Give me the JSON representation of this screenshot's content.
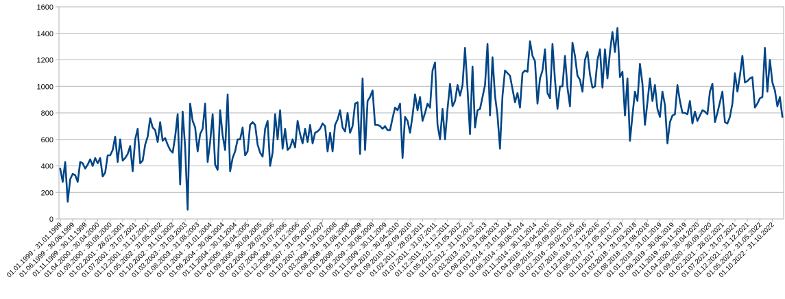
{
  "chart_data": {
    "type": "line",
    "title": "",
    "xlabel": "",
    "ylabel": "",
    "ylim": [
      0,
      1600
    ],
    "yticks": [
      0,
      200,
      400,
      600,
      800,
      1000,
      1200,
      1400,
      1600
    ],
    "grid": true,
    "legend": "none",
    "line_color": "#004586",
    "x_tick_labels": [
      "01.01.1999 - 31.01.1999",
      "01.06.1999 - 30.06.1999",
      "01.11.1999 - 30.11.1999",
      "01.04.2000 - 30.04.2000",
      "01.09.2000 - 30.09.2000",
      "01.02.2001 - 28.02.2001",
      "01.07.2001 - 31.07.2001",
      "01.12.2001 - 31.12.2001",
      "01.05.2002 - 31.05.2002",
      "01.10.2002 - 31.10.2002",
      "01.03.2003 - 31.03.2003",
      "01.08.2003 - 31.08.2003",
      "01.01.2004 - 31.01.2004",
      "01.06.2004 - 30.06.2004",
      "01.11.2004 - 30.11.2004",
      "01.04.2005 - 30.04.2005",
      "01.09.2005 - 30.09.2005",
      "01.02.2006 - 28.02.2006",
      "01.07.2006 - 31.07.2006",
      "01.12.2006 - 31.12.2006",
      "01.05.2007 - 31.05.2007",
      "01.10.2007 - 31.10.2007",
      "01.03.2008 - 31.03.2008",
      "01.08.2008 - 31.08.2008",
      "01.01.2009 - 31.01.2009",
      "01.06.2009 - 30.06.2009",
      "01.11.2009 - 30.11.2009",
      "01.04.2010 - 30.04.2010",
      "01.09.2010 - 30.09.2010",
      "01.02.2011 - 28.02.2011",
      "01.07.2011 - 31.07.2011",
      "01.12.2011 - 31.12.2011",
      "01.05.2012 - 31.05.2012",
      "01.10.2012 - 31.10.2012",
      "01.03.2013 - 31.03.2013",
      "01.08.2013 - 31.08.2013",
      "01.01.2014 - 31.01.2014",
      "01.06.2014 - 30.06.2014",
      "01.11.2014 - 30.11.2014",
      "01.04.2015 - 30.04.2015",
      "01.09.2015 - 30.09.2015",
      "01.02.2016 - 29.02.2016",
      "01.07.2016 - 31.07.2016",
      "01.12.2016 - 31.12.2016",
      "01.05.2017 - 31.05.2017",
      "01.10.2017 - 31.10.2017",
      "01.03.2018 - 31.03.2018",
      "01.08.2018 - 31.08.2018",
      "01.01.2019 - 31.01.2019",
      "01.06.2019 - 30.06.2019",
      "01.11.2019 - 30.11.2019",
      "01.04.2020 - 30.04.2020",
      "01.09.2020 - 30.09.2020",
      "01.02.2021 - 28.02.2021",
      "01.07.2021 - 31.07.2021",
      "01.12.2021 - 31.12.2021",
      "01.05.2022 - 31.05.2022",
      "01.10.2022 - 31.10.2022"
    ],
    "x_tick_every_n_points": 5,
    "values": [
      380,
      280,
      430,
      130,
      300,
      340,
      330,
      280,
      430,
      420,
      380,
      410,
      450,
      400,
      460,
      420,
      460,
      320,
      350,
      480,
      480,
      520,
      620,
      430,
      600,
      440,
      460,
      490,
      550,
      360,
      600,
      680,
      420,
      440,
      560,
      620,
      760,
      690,
      670,
      580,
      730,
      590,
      610,
      560,
      520,
      500,
      620,
      790,
      260,
      810,
      540,
      70,
      870,
      740,
      690,
      510,
      640,
      680,
      870,
      430,
      580,
      790,
      410,
      370,
      820,
      630,
      520,
      940,
      360,
      460,
      510,
      600,
      600,
      690,
      480,
      510,
      710,
      730,
      710,
      560,
      500,
      470,
      680,
      740,
      400,
      500,
      790,
      600,
      820,
      530,
      680,
      520,
      540,
      600,
      540,
      740,
      640,
      570,
      680,
      580,
      710,
      570,
      650,
      660,
      680,
      720,
      700,
      510,
      650,
      510,
      710,
      750,
      820,
      690,
      660,
      800,
      650,
      700,
      870,
      880,
      490,
      1060,
      520,
      890,
      920,
      970,
      710,
      710,
      700,
      680,
      700,
      670,
      670,
      760,
      840,
      820,
      870,
      460,
      770,
      740,
      650,
      780,
      940,
      820,
      920,
      740,
      800,
      870,
      840,
      1120,
      1180,
      710,
      600,
      830,
      600,
      830,
      1020,
      850,
      890,
      1010,
      930,
      1010,
      1290,
      980,
      640,
      1150,
      690,
      820,
      830,
      920,
      1010,
      1320,
      780,
      1220,
      930,
      780,
      530,
      930,
      1120,
      1100,
      1080,
      980,
      880,
      950,
      840,
      1100,
      1120,
      1110,
      1340,
      1230,
      1190,
      870,
      1060,
      1120,
      1280,
      950,
      910,
      1320,
      1050,
      830,
      1000,
      1000,
      1230,
      990,
      850,
      1330,
      1230,
      1080,
      1050,
      960,
      1200,
      1260,
      1090,
      990,
      1000,
      1200,
      1280,
      990,
      1280,
      1060,
      1260,
      1410,
      1260,
      1440,
      1070,
      1110,
      780,
      1060,
      590,
      780,
      960,
      890,
      1170,
      1020,
      710,
      880,
      1060,
      890,
      1010,
      830,
      770,
      960,
      860,
      570,
      730,
      780,
      790,
      1010,
      890,
      800,
      800,
      790,
      890,
      720,
      810,
      740,
      780,
      820,
      810,
      790,
      960,
      1020,
      730,
      800,
      880,
      960,
      730,
      720,
      770,
      870,
      1100,
      960,
      1080,
      1230,
      1030,
      1040,
      1060,
      1070,
      840,
      870,
      910,
      920,
      1290,
      960,
      1200,
      1030,
      970,
      850,
      920,
      770
    ]
  }
}
